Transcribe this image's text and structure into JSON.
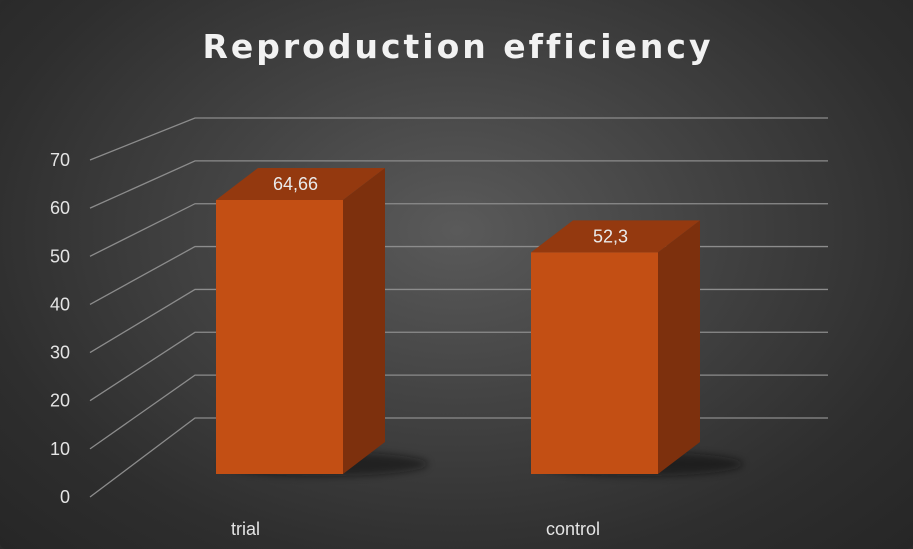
{
  "chart_data": {
    "type": "bar",
    "title": "Reproduction efficiency",
    "categories": [
      "trial",
      "control"
    ],
    "series": [
      {
        "values": [
          64.66,
          52.3
        ],
        "labels": [
          "64,66",
          "52,3"
        ]
      }
    ],
    "ylim": [
      0,
      70
    ],
    "yticks": [
      "0",
      "10",
      "20",
      "30",
      "40",
      "50",
      "60",
      "70"
    ],
    "grid": true,
    "legend": "none",
    "style": "3d-column"
  },
  "colors": {
    "bar_front": "#c34f14",
    "bar_side": "#7d300d",
    "bar_top": "#94390f",
    "gridline": "#8c8c8c",
    "text": "#e4e4e4"
  }
}
